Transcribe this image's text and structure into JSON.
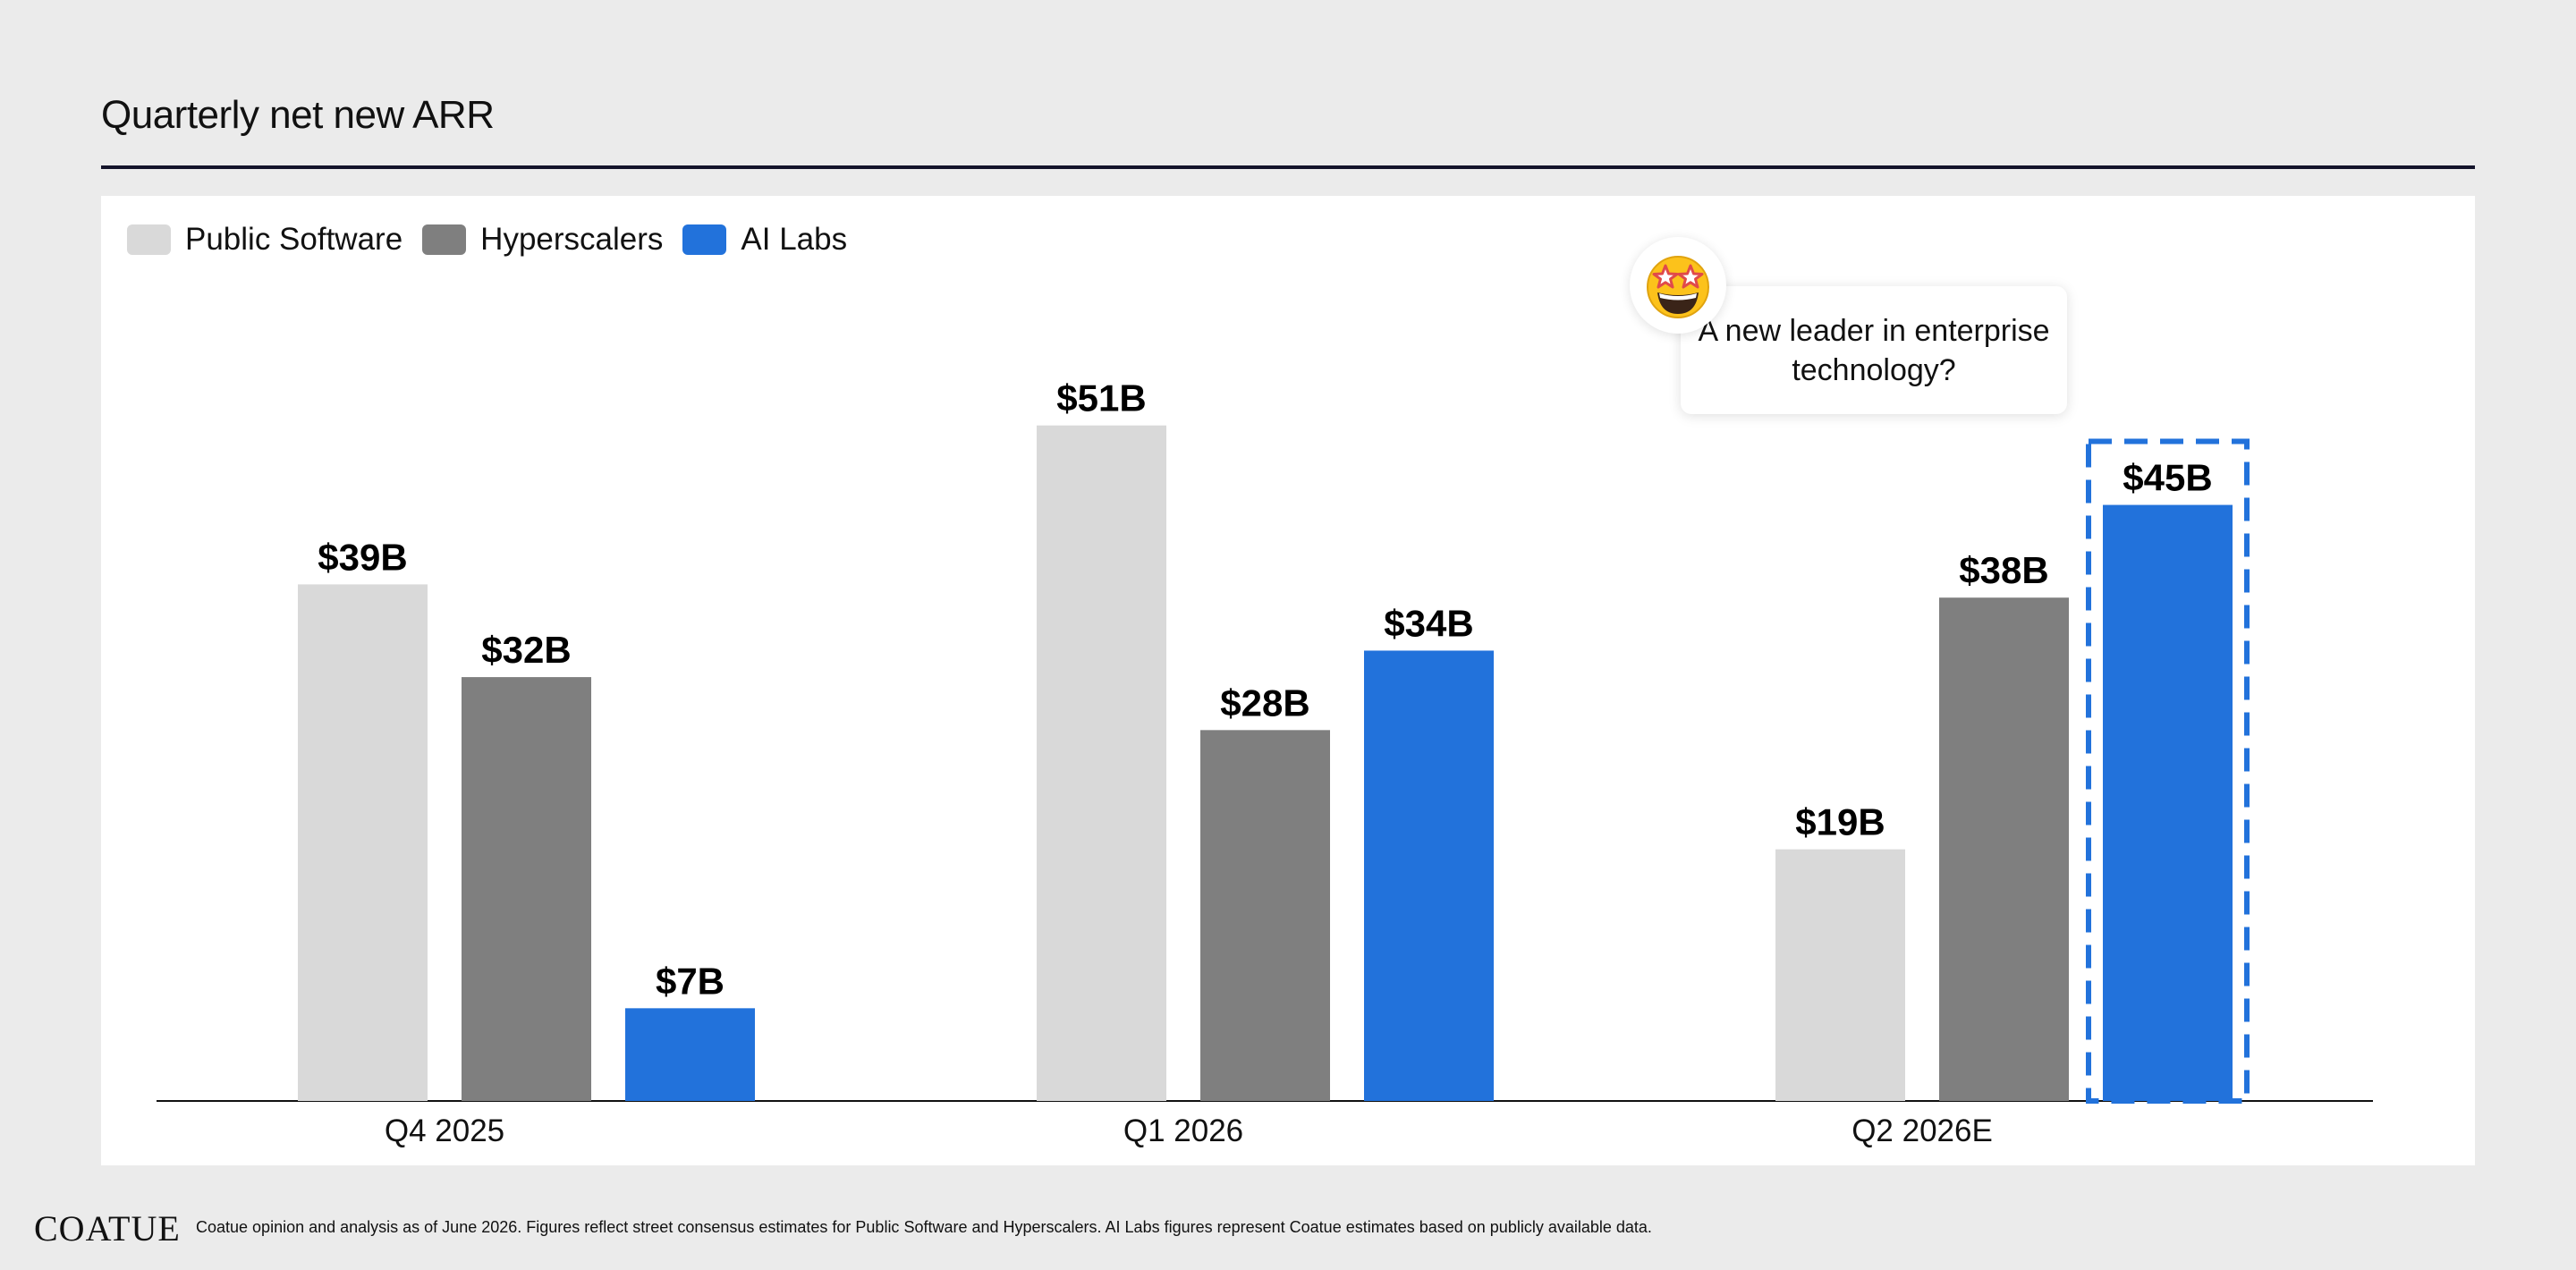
{
  "page": {
    "title": "Quarterly net new ARR"
  },
  "colors": {
    "public_software": "#d9d9d9",
    "hyperscalers": "#7f7f7f",
    "ai_labs": "#2272db",
    "highlight_border": "#2272db",
    "axis": "#111111"
  },
  "callout": {
    "text": "A new leader in enterprise technology?",
    "icon": "star-struck-emoji-icon"
  },
  "footer": {
    "logo": "COATUE",
    "note": "Coatue opinion and analysis as of June 2026. Figures reflect street consensus estimates for Public Software and Hyperscalers. AI Labs figures represent Coatue estimates based on publicly available data."
  },
  "chart_data": {
    "type": "bar",
    "categories": [
      "Q4 2025",
      "Q1 2026",
      "Q2 2026E"
    ],
    "series": [
      {
        "name": "Public Software",
        "values": [
          39,
          51,
          19
        ],
        "labels": [
          "$39B",
          "$51B",
          "$19B"
        ],
        "color": "#d9d9d9"
      },
      {
        "name": "Hyperscalers",
        "values": [
          32,
          28,
          38
        ],
        "labels": [
          "$32B",
          "$28B",
          "$38B"
        ],
        "color": "#7f7f7f"
      },
      {
        "name": "AI Labs",
        "values": [
          7,
          34,
          45
        ],
        "labels": [
          "$7B",
          "$34B",
          "$45B"
        ],
        "color": "#2272db"
      }
    ],
    "title": "Quarterly net new ARR",
    "xlabel": "",
    "ylabel": "",
    "legend_position": "top-left",
    "grid": false,
    "highlight": {
      "category": "Q2 2026E",
      "series": "AI Labs",
      "style": "dashed-border"
    }
  }
}
